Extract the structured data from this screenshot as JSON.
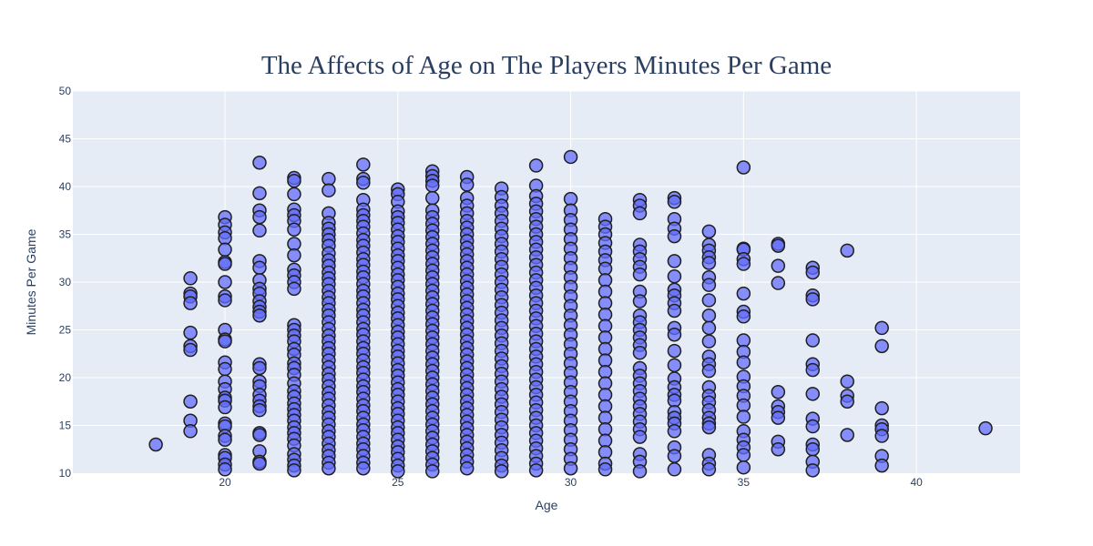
{
  "chart_data": {
    "type": "scatter",
    "title": "The Affects of Age on The Players Minutes Per Game",
    "xlabel": "Age",
    "ylabel": "Minutes Per Game",
    "xlim": [
      15.6,
      43.0
    ],
    "ylim": [
      10,
      50
    ],
    "x_ticks": [
      20,
      25,
      30,
      35,
      40
    ],
    "y_ticks": [
      10,
      15,
      20,
      25,
      30,
      35,
      40,
      45,
      50
    ],
    "grid": true,
    "legend": "none",
    "colors": {
      "plot_bg": "#e5ecf6",
      "grid": "#ffffff",
      "marker": "#636efa",
      "marker_line": "#1f1f1f",
      "text": "#2a3f5f"
    },
    "points": {
      "18": [
        13.0
      ],
      "19": [
        30.4,
        28.8,
        28.5,
        27.8,
        24.7,
        23.3,
        22.9,
        17.5,
        15.5,
        14.4
      ],
      "20": [
        36.8,
        36.0,
        35.2,
        34.6,
        33.4,
        32.1,
        31.9,
        30.0,
        28.5,
        28.1,
        25.0,
        24.0,
        23.8,
        21.6,
        20.9,
        19.6,
        18.8,
        17.9,
        17.6,
        16.9,
        15.2,
        14.9,
        13.9,
        13.5,
        11.9,
        11.6,
        10.9,
        10.4
      ],
      "21": [
        42.5,
        39.3,
        37.5,
        36.8,
        35.4,
        32.2,
        31.5,
        30.2,
        29.3,
        28.8,
        28.0,
        27.4,
        26.9,
        26.5,
        21.4,
        21.0,
        19.6,
        19.1,
        18.2,
        17.6,
        17.0,
        16.6,
        14.2,
        14.0,
        12.3,
        11.2,
        11.0
      ],
      "22": [
        40.9,
        40.6,
        39.2,
        37.6,
        37.0,
        36.4,
        35.5,
        34.0,
        32.8,
        31.3,
        30.7,
        30.0,
        29.3,
        25.5,
        25.0,
        24.4,
        23.8,
        23.0,
        22.4,
        21.5,
        21.0,
        20.3,
        19.4,
        18.6,
        18.0,
        17.3,
        16.7,
        16.1,
        15.5,
        14.8,
        14.2,
        13.6,
        12.9,
        12.0,
        11.4,
        10.8,
        10.3
      ],
      "23": [
        40.8,
        39.6,
        37.2,
        36.2,
        35.6,
        35.0,
        34.4,
        33.8,
        33.0,
        32.3,
        31.7,
        31.0,
        30.4,
        29.8,
        29.1,
        28.4,
        27.8,
        27.1,
        26.5,
        25.8,
        25.1,
        24.4,
        23.8,
        23.1,
        22.5,
        21.8,
        21.1,
        20.4,
        19.8,
        19.1,
        18.4,
        17.8,
        17.1,
        16.4,
        15.8,
        15.1,
        14.4,
        13.8,
        13.1,
        12.4,
        11.8,
        11.1,
        10.5
      ],
      "24": [
        42.3,
        40.8,
        40.4,
        38.6,
        37.6,
        37.0,
        36.4,
        35.8,
        35.1,
        34.4,
        33.8,
        33.1,
        32.4,
        31.8,
        31.1,
        30.5,
        29.8,
        29.1,
        28.5,
        27.8,
        27.1,
        26.5,
        25.8,
        25.1,
        24.5,
        23.8,
        23.1,
        22.5,
        21.8,
        21.1,
        20.5,
        19.8,
        19.1,
        18.5,
        17.8,
        17.1,
        16.5,
        15.8,
        15.1,
        14.5,
        13.8,
        13.1,
        12.5,
        11.8,
        11.1,
        10.5
      ],
      "25": [
        39.7,
        39.2,
        38.4,
        37.4,
        36.8,
        36.2,
        35.5,
        34.8,
        34.2,
        33.5,
        32.8,
        32.2,
        31.5,
        30.8,
        30.2,
        29.5,
        28.8,
        28.2,
        27.5,
        26.8,
        26.2,
        25.5,
        24.8,
        24.2,
        23.5,
        22.8,
        22.2,
        21.5,
        20.8,
        20.2,
        19.5,
        18.8,
        18.2,
        17.5,
        16.8,
        16.2,
        15.5,
        14.8,
        14.2,
        13.5,
        12.8,
        12.2,
        11.5,
        10.8,
        10.2
      ],
      "26": [
        41.6,
        41.1,
        40.6,
        40.1,
        38.8,
        37.5,
        36.8,
        36.1,
        35.4,
        34.7,
        34.0,
        33.3,
        32.6,
        31.9,
        31.2,
        30.5,
        29.8,
        29.1,
        28.4,
        27.7,
        27.0,
        26.3,
        25.6,
        24.9,
        24.2,
        23.5,
        22.8,
        22.1,
        21.4,
        20.7,
        20.0,
        19.3,
        18.6,
        17.9,
        17.2,
        16.5,
        15.8,
        15.1,
        14.4,
        13.7,
        13.0,
        12.3,
        11.6,
        10.9,
        10.2
      ],
      "27": [
        41.0,
        40.2,
        38.8,
        38.0,
        37.2,
        36.4,
        35.7,
        35.0,
        34.3,
        33.6,
        32.9,
        32.2,
        31.5,
        30.8,
        30.1,
        29.4,
        28.7,
        28.0,
        27.3,
        26.6,
        25.9,
        25.2,
        24.5,
        23.8,
        23.1,
        22.4,
        21.7,
        21.0,
        20.3,
        19.6,
        18.9,
        18.2,
        17.5,
        16.8,
        16.1,
        15.4,
        14.7,
        14.0,
        13.3,
        12.6,
        11.9,
        11.2,
        10.5
      ],
      "28": [
        39.8,
        38.9,
        38.0,
        37.2,
        36.4,
        35.6,
        34.8,
        34.0,
        33.2,
        32.4,
        31.6,
        30.8,
        30.0,
        29.2,
        28.4,
        27.6,
        26.8,
        26.0,
        25.2,
        24.4,
        23.6,
        22.8,
        22.0,
        21.2,
        20.4,
        19.6,
        18.8,
        18.0,
        17.2,
        16.4,
        15.6,
        14.8,
        14.0,
        13.2,
        12.4,
        11.6,
        10.8,
        10.2
      ],
      "29": [
        42.2,
        40.1,
        39.0,
        38.2,
        37.4,
        36.6,
        35.8,
        35.0,
        34.2,
        33.4,
        32.6,
        31.8,
        31.0,
        30.2,
        29.4,
        28.6,
        27.8,
        27.0,
        26.2,
        25.4,
        24.6,
        23.8,
        23.0,
        22.2,
        21.4,
        20.6,
        19.8,
        19.0,
        18.2,
        17.4,
        16.6,
        15.8,
        15.0,
        14.2,
        13.4,
        12.6,
        11.8,
        11.0,
        10.3
      ],
      "30": [
        43.1,
        38.7,
        37.5,
        36.5,
        35.5,
        34.5,
        33.5,
        32.5,
        31.5,
        30.5,
        29.5,
        28.5,
        27.5,
        26.5,
        25.5,
        24.5,
        23.5,
        22.5,
        21.5,
        20.5,
        19.5,
        18.5,
        17.5,
        16.5,
        15.5,
        14.5,
        13.5,
        12.5,
        11.5,
        10.5
      ],
      "31": [
        36.6,
        35.8,
        35.0,
        34.1,
        33.2,
        32.3,
        31.4,
        30.2,
        29.0,
        27.8,
        26.6,
        25.4,
        24.2,
        23.0,
        21.8,
        20.6,
        19.4,
        18.2,
        17.0,
        15.8,
        14.6,
        13.4,
        12.2,
        11.0,
        10.4
      ],
      "32": [
        38.6,
        38.0,
        37.2,
        33.9,
        33.2,
        32.4,
        31.6,
        30.8,
        29.0,
        28.0,
        26.5,
        25.8,
        25.0,
        24.2,
        23.4,
        22.6,
        21.0,
        20.2,
        19.4,
        18.6,
        17.8,
        17.0,
        16.2,
        15.4,
        14.6,
        13.8,
        12.0,
        11.2,
        10.2
      ],
      "33": [
        38.8,
        38.4,
        36.6,
        35.6,
        34.8,
        32.2,
        30.6,
        29.2,
        28.6,
        27.8,
        27.0,
        25.2,
        24.5,
        22.8,
        21.3,
        19.9,
        19.0,
        18.2,
        17.6,
        16.4,
        15.8,
        15.2,
        14.4,
        12.7,
        11.8,
        10.4
      ],
      "34": [
        35.3,
        33.9,
        33.3,
        32.6,
        32.0,
        30.5,
        29.7,
        28.1,
        26.5,
        25.2,
        23.8,
        22.2,
        21.4,
        20.7,
        19.0,
        18.1,
        17.4,
        16.6,
        15.8,
        15.2,
        14.8,
        11.9,
        11.0,
        10.4
      ],
      "35": [
        42.0,
        33.5,
        33.4,
        32.4,
        31.9,
        28.8,
        26.9,
        26.4,
        23.9,
        22.7,
        21.6,
        20.1,
        19.1,
        18.1,
        17.1,
        15.9,
        14.4,
        13.5,
        12.7,
        11.9,
        10.6
      ],
      "36": [
        34.0,
        33.8,
        31.7,
        29.9,
        18.5,
        17.0,
        16.4,
        15.8,
        13.3,
        12.5
      ],
      "37": [
        31.5,
        31.0,
        28.6,
        28.2,
        23.9,
        21.4,
        20.8,
        18.3,
        15.7,
        14.9,
        13.0,
        12.5,
        11.2,
        10.3
      ],
      "38": [
        33.3,
        19.6,
        18.1,
        17.5,
        14.0
      ],
      "39": [
        25.2,
        23.3,
        16.8,
        15.0,
        14.6,
        13.9,
        11.8,
        10.8
      ],
      "42": [
        14.7
      ]
    }
  }
}
